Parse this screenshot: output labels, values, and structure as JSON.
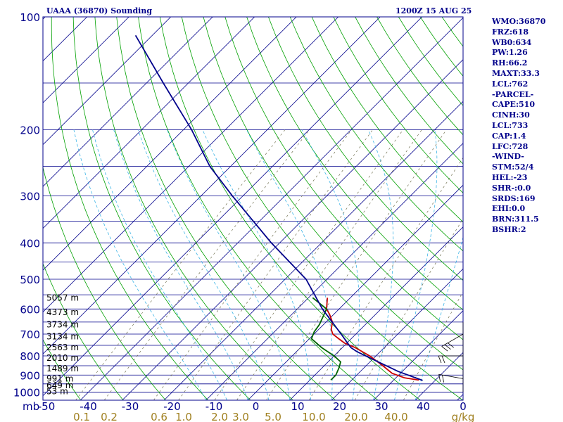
{
  "header": {
    "title": "UAAA (36870) Sounding",
    "time": "1200Z 15 AUG 25"
  },
  "indices": [
    "WMO:36870",
    "FRZ:618",
    "WB0:634",
    "PW:1.26",
    "RH:66.2",
    "MAXT:33.3",
    "LCL:762",
    "-PARCEL-",
    "CAPE:510",
    "CINH:30",
    "LCL:733",
    "CAP:1.4",
    "LFC:728",
    "-WIND-",
    "STM:52/4",
    "HEL:-23",
    "SHR-:0.0",
    "SRDS:169",
    "EHI:0.0",
    "BRN:311.5",
    "BSHR:2"
  ],
  "colors": {
    "border": "#00008b",
    "isobar": "#00008b",
    "isotherm": "#00008b",
    "dry_adiabat": "#00a000",
    "moist_adiabat": "#3cb4e6",
    "mixing_ratio": "#707050",
    "temperature": "#cc0000",
    "dewpoint": "#006400",
    "parcel": "#00008b",
    "wind_barb": "#000000",
    "pressure_label": "#00008b",
    "temp_label": "#00008b",
    "mixing_label": "#a08020"
  },
  "chart_data": {
    "type": "line",
    "diagram": "skew-T log-P",
    "ylabel": "mb",
    "ylim": [
      1000,
      100
    ],
    "xlim": [
      -50,
      0
    ],
    "pressure_ticks": [
      100,
      200,
      300,
      400,
      500,
      600,
      700,
      800,
      900,
      1000
    ],
    "temperature_ticks": [
      -50,
      -40,
      -30,
      -20,
      -10,
      0,
      10,
      20,
      30,
      40,
      0
    ],
    "mixing_ratio_labels": [
      "0.1",
      "0.2",
      "0.6",
      "1.0",
      "2.0",
      "3.0",
      "5.0",
      "10.0",
      "20.0",
      "40.0",
      "g/kg"
    ],
    "height_labels": [
      {
        "p": 560,
        "label": "5057 m"
      },
      {
        "p": 612,
        "label": "4373 m"
      },
      {
        "p": 660,
        "label": "3734 m"
      },
      {
        "p": 710,
        "label": "3134 m"
      },
      {
        "p": 760,
        "label": "2563 m"
      },
      {
        "p": 810,
        "label": "2010 m"
      },
      {
        "p": 865,
        "label": "1489 m"
      },
      {
        "p": 920,
        "label": "991 m"
      },
      {
        "p": 960,
        "label": "649 m"
      },
      {
        "p": 995,
        "label": "53 m"
      }
    ],
    "series": [
      {
        "key": "temperature",
        "points": [
          {
            "p": 928,
            "t": 36
          },
          {
            "p": 915,
            "t": 32
          },
          {
            "p": 890,
            "t": 28
          },
          {
            "p": 850,
            "t": 24
          },
          {
            "p": 800,
            "t": 18.5
          },
          {
            "p": 760,
            "t": 13
          },
          {
            "p": 740,
            "t": 9.5
          },
          {
            "p": 720,
            "t": 7
          },
          {
            "p": 700,
            "t": 4.5
          },
          {
            "p": 680,
            "t": 3
          },
          {
            "p": 650,
            "t": 1.5
          },
          {
            "p": 620,
            "t": -1
          },
          {
            "p": 600,
            "t": -3
          },
          {
            "p": 560,
            "t": -5.5
          }
        ]
      },
      {
        "key": "dewpoint",
        "points": [
          {
            "p": 928,
            "t": 15
          },
          {
            "p": 900,
            "t": 15
          },
          {
            "p": 860,
            "t": 14
          },
          {
            "p": 830,
            "t": 13
          },
          {
            "p": 800,
            "t": 10
          },
          {
            "p": 760,
            "t": 5
          },
          {
            "p": 720,
            "t": 0.5
          },
          {
            "p": 690,
            "t": -0.5
          },
          {
            "p": 660,
            "t": -1
          },
          {
            "p": 600,
            "t": -3
          },
          {
            "p": 560,
            "t": -9
          }
        ]
      },
      {
        "key": "parcel",
        "points": [
          {
            "p": 930,
            "t": 37
          },
          {
            "p": 880,
            "t": 29
          },
          {
            "p": 820,
            "t": 20.5
          },
          {
            "p": 780,
            "t": 14.5
          },
          {
            "p": 760,
            "t": 12
          },
          {
            "p": 700,
            "t": 6.5
          },
          {
            "p": 600,
            "t": -4
          },
          {
            "p": 500,
            "t": -15
          },
          {
            "p": 400,
            "t": -32
          },
          {
            "p": 350,
            "t": -41.5
          },
          {
            "p": 300,
            "t": -52.5
          },
          {
            "p": 250,
            "t": -65
          },
          {
            "p": 200,
            "t": -78
          },
          {
            "p": 150,
            "t": -96
          },
          {
            "p": 112,
            "t": -114
          }
        ]
      }
    ],
    "wind_barbs": [
      {
        "p": 700,
        "direction": 240,
        "speed_kt": 25
      },
      {
        "p": 800,
        "direction": 270,
        "speed_kt": 20
      },
      {
        "p": 920,
        "direction": 280,
        "speed_kt": 20
      }
    ]
  }
}
